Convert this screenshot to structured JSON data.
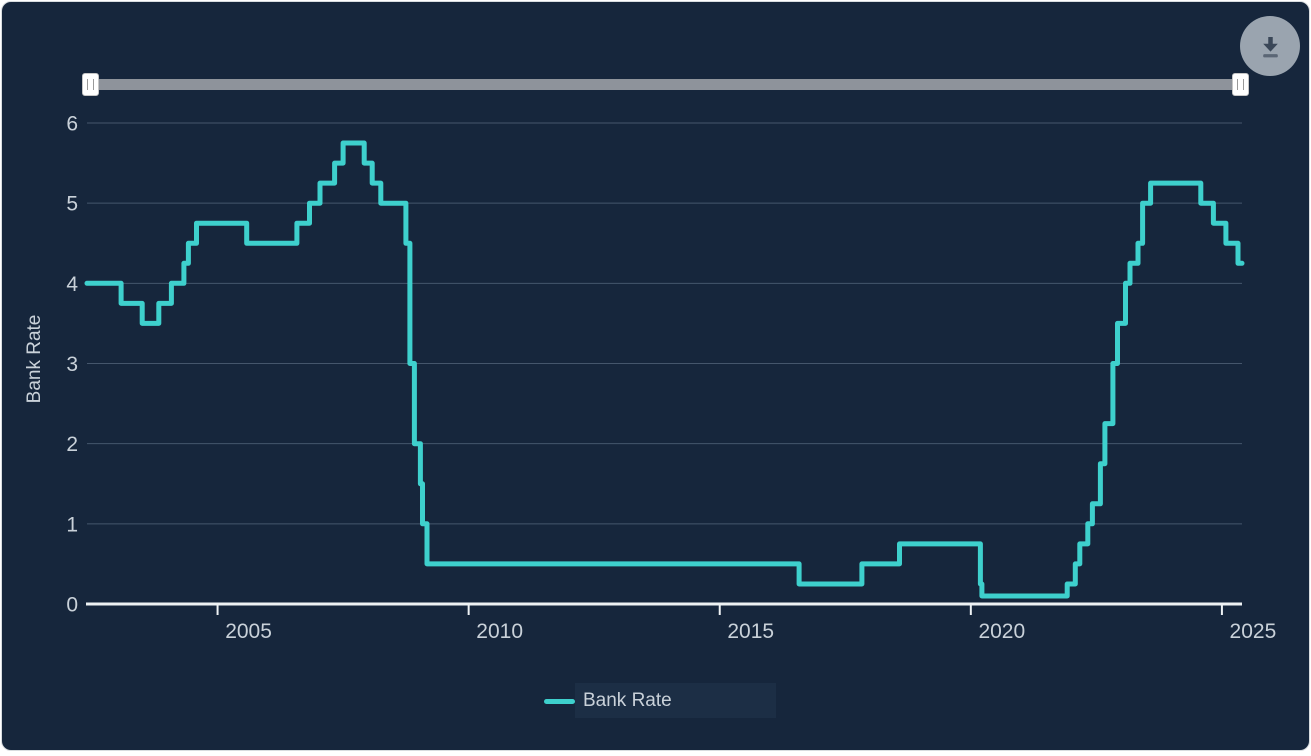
{
  "toolbar": {
    "download_icon": "download-icon"
  },
  "range_slider": {
    "grip_icon": "drag-grip",
    "state": "full-range"
  },
  "chart_data": {
    "type": "line",
    "step": true,
    "title": "",
    "xlabel": "",
    "ylabel": "Bank Rate",
    "xlim": [
      2002.4,
      2025.4
    ],
    "ylim": [
      0,
      6
    ],
    "x_ticks": [
      2005,
      2010,
      2015,
      2020,
      2025
    ],
    "y_ticks": [
      0,
      1,
      2,
      3,
      4,
      5,
      6
    ],
    "grid": true,
    "legend": {
      "position": "bottom",
      "items": [
        {
          "label": "Bank Rate",
          "color": "#3ed0cd"
        }
      ]
    },
    "series": [
      {
        "name": "Bank Rate",
        "color": "#3ed0cd",
        "x_end": 2025.4,
        "points": [
          [
            2002.4,
            4.0
          ],
          [
            2003.08,
            3.75
          ],
          [
            2003.5,
            3.5
          ],
          [
            2003.83,
            3.75
          ],
          [
            2004.08,
            4.0
          ],
          [
            2004.33,
            4.25
          ],
          [
            2004.42,
            4.5
          ],
          [
            2004.58,
            4.75
          ],
          [
            2005.58,
            4.5
          ],
          [
            2006.58,
            4.75
          ],
          [
            2006.83,
            5.0
          ],
          [
            2007.04,
            5.25
          ],
          [
            2007.33,
            5.5
          ],
          [
            2007.5,
            5.75
          ],
          [
            2007.92,
            5.5
          ],
          [
            2008.08,
            5.25
          ],
          [
            2008.25,
            5.0
          ],
          [
            2008.75,
            4.5
          ],
          [
            2008.83,
            3.0
          ],
          [
            2008.92,
            2.0
          ],
          [
            2009.04,
            1.5
          ],
          [
            2009.08,
            1.0
          ],
          [
            2009.17,
            0.5
          ],
          [
            2016.58,
            0.25
          ],
          [
            2017.83,
            0.5
          ],
          [
            2018.58,
            0.75
          ],
          [
            2020.19,
            0.25
          ],
          [
            2020.22,
            0.1
          ],
          [
            2021.92,
            0.25
          ],
          [
            2022.08,
            0.5
          ],
          [
            2022.17,
            0.75
          ],
          [
            2022.33,
            1.0
          ],
          [
            2022.42,
            1.25
          ],
          [
            2022.58,
            1.75
          ],
          [
            2022.67,
            2.25
          ],
          [
            2022.83,
            3.0
          ],
          [
            2022.92,
            3.5
          ],
          [
            2023.08,
            4.0
          ],
          [
            2023.17,
            4.25
          ],
          [
            2023.33,
            4.5
          ],
          [
            2023.42,
            5.0
          ],
          [
            2023.58,
            5.25
          ],
          [
            2024.58,
            5.0
          ],
          [
            2024.83,
            4.75
          ],
          [
            2025.08,
            4.5
          ],
          [
            2025.32,
            4.25
          ]
        ]
      }
    ]
  },
  "colors": {
    "page_background": "#ffffff",
    "card_background": "#16263c",
    "line": "#3ed0cd",
    "grid_line": "#45566c",
    "axis_line": "#eef2f4",
    "label_text": "#c9d1d9",
    "slider_track": "#8e939b",
    "download_button": "#9aa4af"
  }
}
